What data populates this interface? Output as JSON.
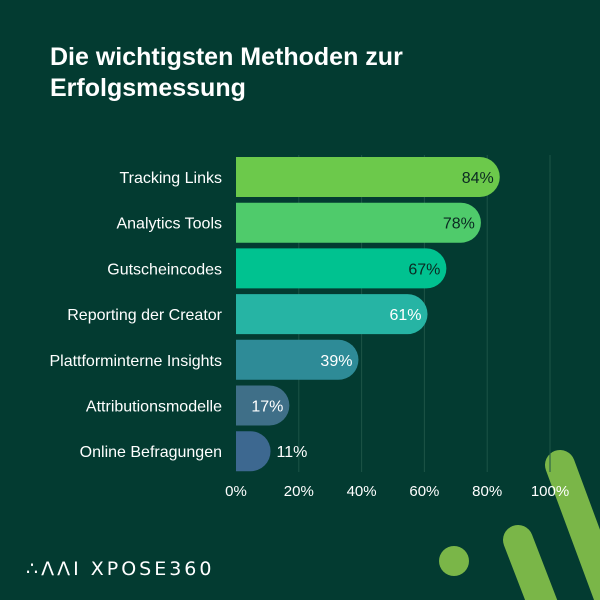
{
  "title": "Die wichtigsten Methoden zur Erfolgsmessung",
  "logo_text": "∴ΛΛI XPOSE360",
  "chart_data": {
    "type": "bar",
    "orientation": "horizontal",
    "title": "Die wichtigsten Methoden zur Erfolgsmessung",
    "categories": [
      "Tracking Links",
      "Analytics Tools",
      "Gutscheincodes",
      "Reporting der Creator",
      "Plattforminterne Insights",
      "Attributionsmodelle",
      "Online Befragungen"
    ],
    "values": [
      84,
      78,
      67,
      61,
      39,
      17,
      11
    ],
    "data_labels": [
      "84%",
      "78%",
      "67%",
      "61%",
      "39%",
      "17%",
      "11%"
    ],
    "colors": [
      "#6cc94b",
      "#4fcb6b",
      "#00c290",
      "#26b4a4",
      "#2e8b97",
      "#3f6f88",
      "#3d6890"
    ],
    "label_colors": [
      "#0b2a22",
      "#0b2a22",
      "#0b2a22",
      "#ffffff",
      "#ffffff",
      "#ffffff",
      "#ffffff"
    ],
    "xlim": [
      0,
      100
    ],
    "xticks": [
      "0%",
      "20%",
      "40%",
      "60%",
      "80%",
      "100%"
    ],
    "grid": true
  },
  "colors": {
    "background": "#033b31",
    "accent": "#7ab648"
  }
}
